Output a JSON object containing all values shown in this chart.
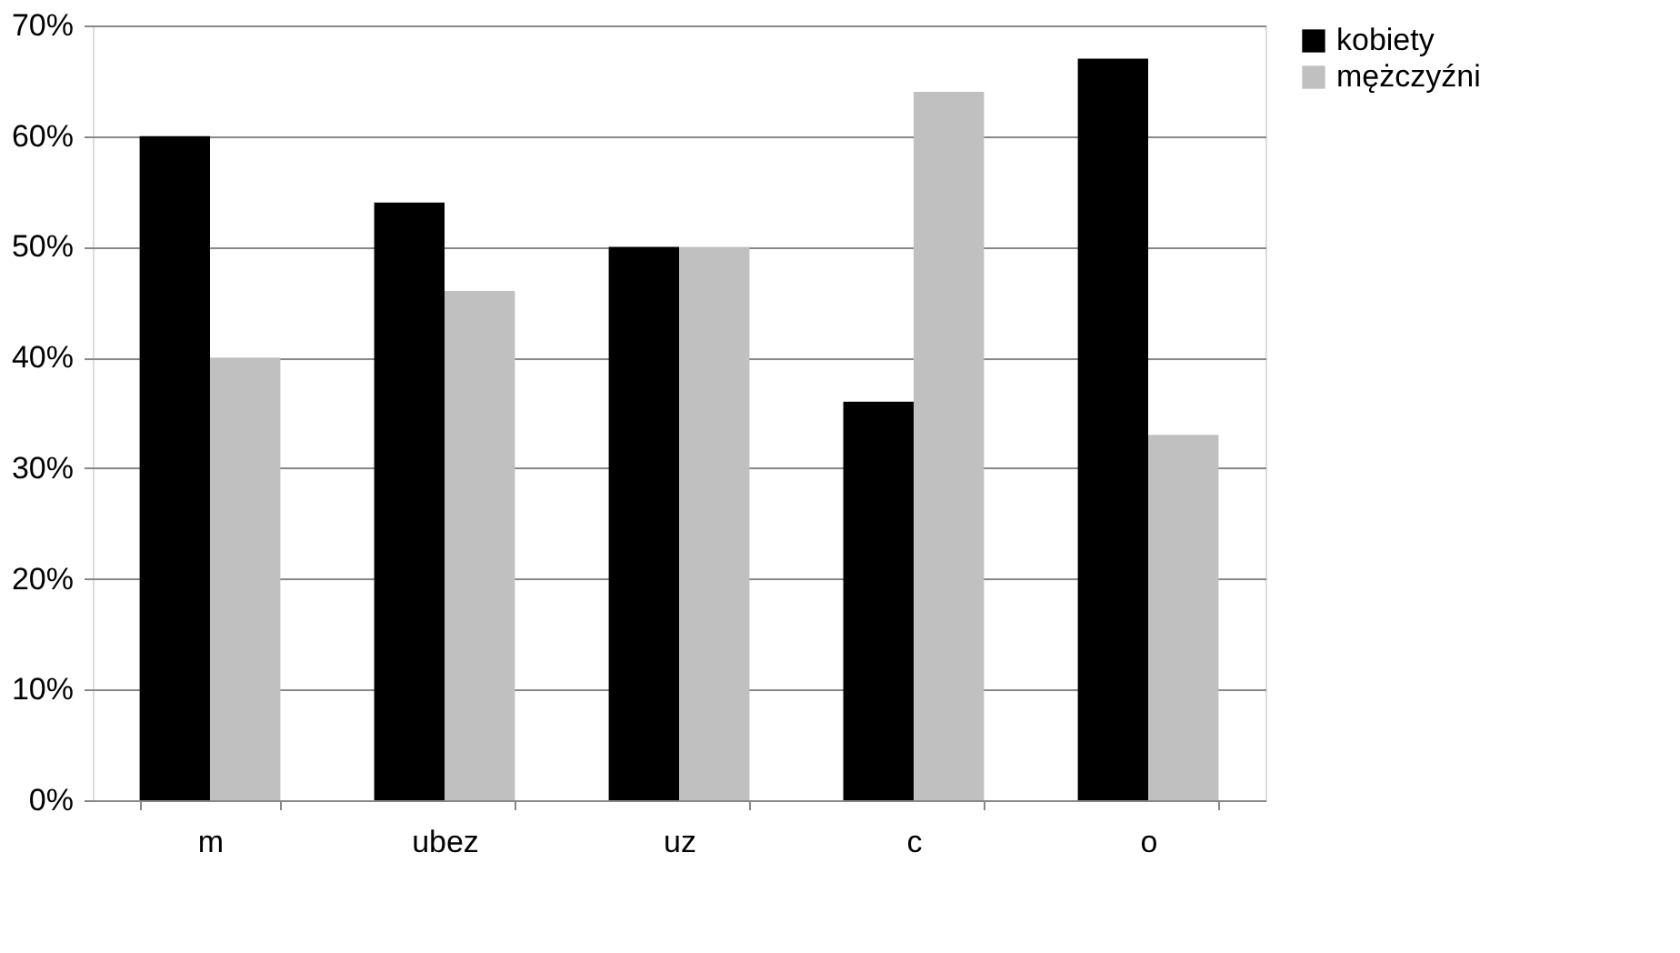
{
  "chart_data": {
    "type": "bar",
    "categories": [
      "m",
      "ubez",
      "uz",
      "c",
      "o"
    ],
    "series": [
      {
        "name": "kobiety",
        "color": "#000000",
        "values": [
          60,
          54,
          50,
          36,
          67
        ]
      },
      {
        "name": "mężczyźni",
        "color": "#c0c0c0",
        "values": [
          40,
          46,
          50,
          64,
          33
        ]
      }
    ],
    "ylim": [
      0,
      70
    ],
    "yticks": [
      {
        "value": 0,
        "label": "0%"
      },
      {
        "value": 10,
        "label": "10%"
      },
      {
        "value": 20,
        "label": "20%"
      },
      {
        "value": 30,
        "label": "30%"
      },
      {
        "value": 40,
        "label": "40%"
      },
      {
        "value": 50,
        "label": "50%"
      },
      {
        "value": 60,
        "label": "60%"
      },
      {
        "value": 70,
        "label": "70%"
      }
    ],
    "grid": "y",
    "legend": "right"
  }
}
